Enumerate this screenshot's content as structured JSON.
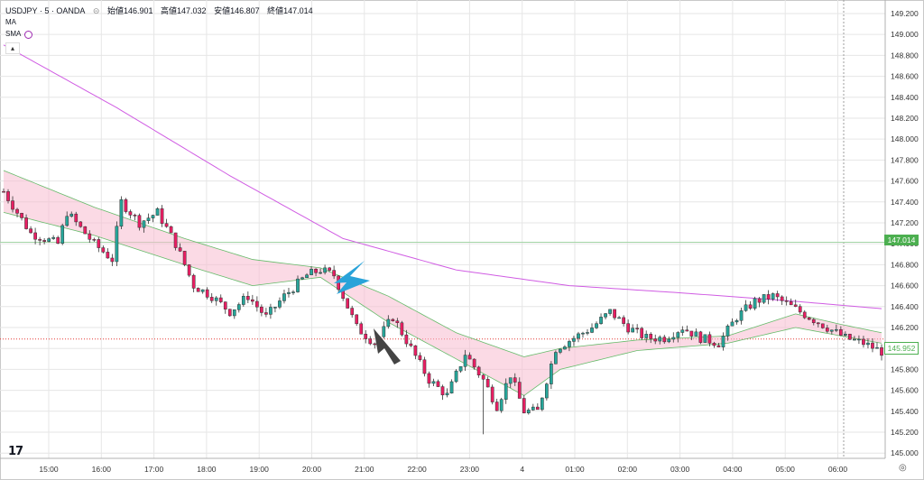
{
  "header": {
    "symbol": "USDJPY · 5 · OANDA",
    "open": "始値146.901",
    "high": "高値147.032",
    "low": "安値146.807",
    "close": "終値147.014"
  },
  "indicators": [
    "MA",
    "SMA"
  ],
  "icons": {
    "collapse": "chevron-up-icon",
    "logo": "tradingview-logo-icon",
    "settings": "gear-icon"
  },
  "colors": {
    "up": "#26a69a",
    "down": "#e91e63",
    "band_fill": "#f8bbd0",
    "band_line": "#66bb6a",
    "sma": "#d05ce3",
    "arrow_blue": "#29a3d9",
    "arrow_dark": "#444444",
    "tag_green": "#4caf50"
  },
  "price_tags": {
    "current": "147.014",
    "last": "145.952"
  },
  "chart_data": {
    "type": "candlestick",
    "x_ticks": [
      "15:00",
      "16:00",
      "17:00",
      "18:00",
      "19:00",
      "20:00",
      "21:00",
      "22:00",
      "23:00",
      "4",
      "01:00",
      "02:00",
      "03:00",
      "04:00",
      "05:00",
      "06:00"
    ],
    "y_ticks": [
      "145.000",
      "145.200",
      "145.400",
      "145.600",
      "145.800",
      "146.000",
      "146.200",
      "146.400",
      "146.600",
      "146.800",
      "147.000",
      "147.200",
      "147.400",
      "147.600",
      "147.800",
      "148.000",
      "148.200",
      "148.400",
      "148.600",
      "148.800",
      "149.000",
      "149.200"
    ],
    "ylim": [
      144.95,
      149.26
    ],
    "close_path": [
      [
        0,
        147.5
      ],
      [
        6,
        147.1
      ],
      [
        12,
        147.0
      ],
      [
        14,
        147.3
      ],
      [
        17,
        147.15
      ],
      [
        20,
        147.0
      ],
      [
        24,
        146.85
      ],
      [
        26,
        147.4
      ],
      [
        30,
        147.2
      ],
      [
        34,
        147.3
      ],
      [
        38,
        147.0
      ],
      [
        42,
        146.6
      ],
      [
        46,
        146.5
      ],
      [
        50,
        146.35
      ],
      [
        54,
        146.5
      ],
      [
        58,
        146.3
      ],
      [
        62,
        146.5
      ],
      [
        67,
        146.7
      ],
      [
        70,
        146.75
      ],
      [
        73,
        146.7
      ],
      [
        75,
        146.5
      ],
      [
        78,
        146.2
      ],
      [
        82,
        146.05
      ],
      [
        86,
        146.3
      ],
      [
        90,
        146.0
      ],
      [
        94,
        145.7
      ],
      [
        98,
        145.55
      ],
      [
        102,
        145.95
      ],
      [
        106,
        145.7
      ],
      [
        109,
        145.45
      ],
      [
        112,
        145.75
      ],
      [
        115,
        145.4
      ],
      [
        118,
        145.4
      ],
      [
        122,
        146.0
      ],
      [
        126,
        146.1
      ],
      [
        130,
        146.2
      ],
      [
        134,
        146.35
      ],
      [
        138,
        146.2
      ],
      [
        142,
        146.1
      ],
      [
        146,
        146.1
      ],
      [
        150,
        146.2
      ],
      [
        154,
        146.1
      ],
      [
        158,
        146.05
      ],
      [
        162,
        146.3
      ],
      [
        166,
        146.45
      ],
      [
        170,
        146.5
      ],
      [
        174,
        146.4
      ],
      [
        178,
        146.3
      ],
      [
        182,
        146.2
      ],
      [
        186,
        146.1
      ],
      [
        190,
        146.05
      ],
      [
        194,
        145.97
      ]
    ],
    "band_upper": [
      [
        0,
        147.7
      ],
      [
        20,
        147.35
      ],
      [
        40,
        147.05
      ],
      [
        55,
        146.85
      ],
      [
        70,
        146.77
      ],
      [
        85,
        146.5
      ],
      [
        100,
        146.15
      ],
      [
        115,
        145.92
      ],
      [
        123,
        146.0
      ],
      [
        140,
        146.08
      ],
      [
        160,
        146.12
      ],
      [
        175,
        146.33
      ],
      [
        185,
        146.23
      ],
      [
        194,
        146.15
      ]
    ],
    "band_lower": [
      [
        0,
        147.3
      ],
      [
        20,
        147.08
      ],
      [
        40,
        146.8
      ],
      [
        55,
        146.6
      ],
      [
        70,
        146.68
      ],
      [
        85,
        146.25
      ],
      [
        100,
        145.9
      ],
      [
        115,
        145.55
      ],
      [
        123,
        145.8
      ],
      [
        140,
        145.98
      ],
      [
        160,
        146.05
      ],
      [
        175,
        146.2
      ],
      [
        185,
        146.12
      ],
      [
        194,
        146.05
      ]
    ],
    "sma": [
      [
        0,
        148.9
      ],
      [
        25,
        148.3
      ],
      [
        50,
        147.65
      ],
      [
        75,
        147.05
      ],
      [
        100,
        146.75
      ],
      [
        125,
        146.6
      ],
      [
        150,
        146.53
      ],
      [
        175,
        146.45
      ],
      [
        194,
        146.38
      ]
    ],
    "spike": {
      "low": 145.18
    },
    "hline": 146.09,
    "current_line": 147.014,
    "last_price": 145.952
  }
}
